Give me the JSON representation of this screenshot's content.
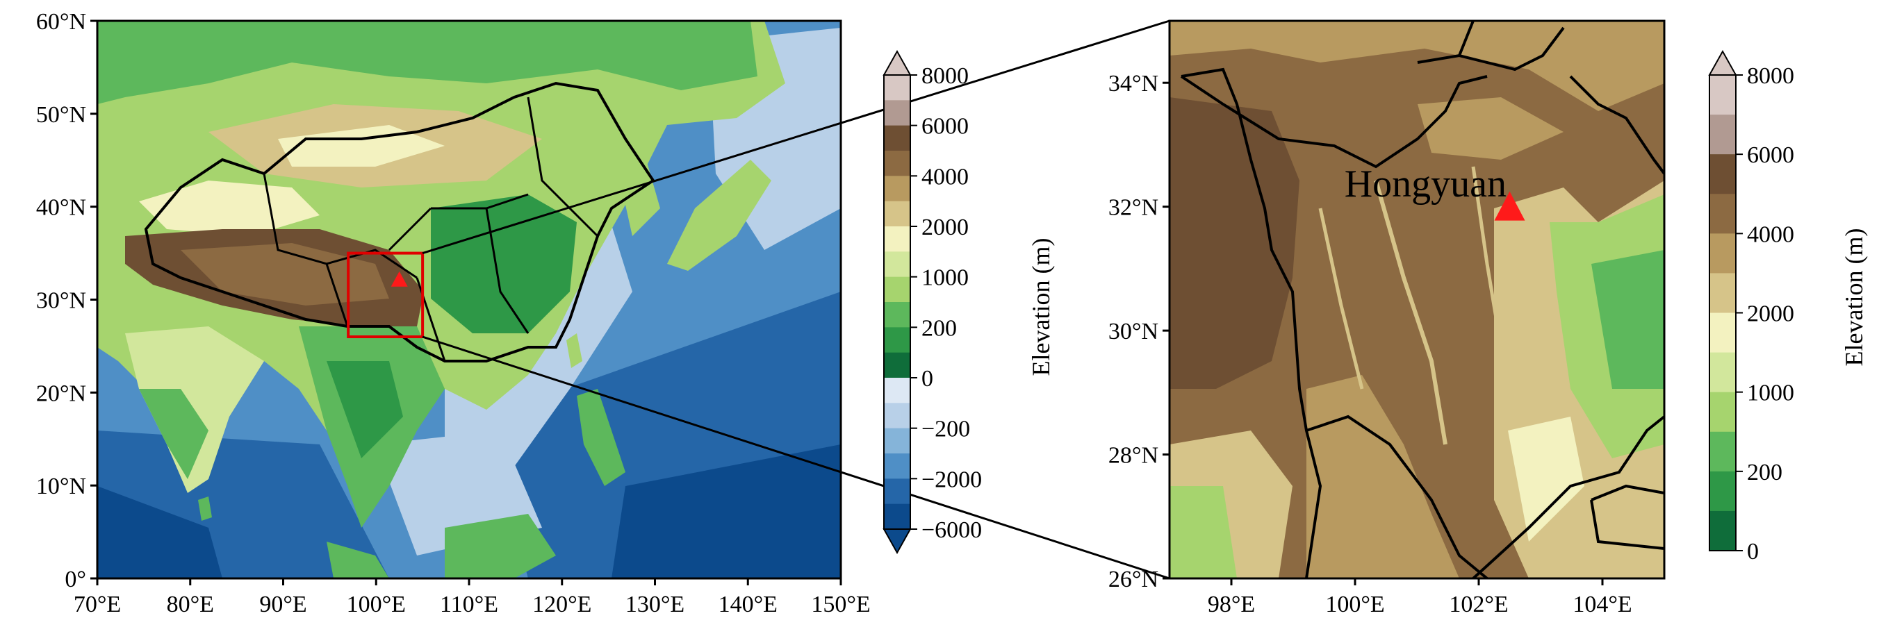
{
  "left_map": {
    "lat_ticks": [
      "60°N",
      "50°N",
      "40°N",
      "30°N",
      "20°N",
      "10°N",
      "0°"
    ],
    "lon_ticks": [
      "70°E",
      "80°E",
      "90°E",
      "100°E",
      "110°E",
      "120°E",
      "130°E",
      "140°E",
      "150°E"
    ],
    "extent": {
      "lon": [
        70,
        150
      ],
      "lat": [
        0,
        60
      ]
    },
    "inset_box": {
      "lon": [
        97,
        105
      ],
      "lat": [
        26,
        35
      ]
    },
    "site_marker": {
      "lon": 102.5,
      "lat": 32.0
    }
  },
  "left_colorbar": {
    "label": "Elevation (m)",
    "tick_labels": [
      "8000",
      "6000",
      "4000",
      "2000",
      "1000",
      "200",
      "0",
      "−200",
      "−2000",
      "−6000"
    ],
    "colors": [
      "#d8c8c4",
      "#b19a92",
      "#6e4f33",
      "#8c6a42",
      "#b89a60",
      "#d6c489",
      "#f3f2c0",
      "#d2e79c",
      "#a6d46e",
      "#5db85c",
      "#2e9847",
      "#0f6d3a",
      "#dde8f4",
      "#b8d0e8",
      "#85b4d9",
      "#4f8fc6",
      "#2566a8",
      "#0c4a8c"
    ]
  },
  "right_map": {
    "lat_ticks": [
      "34°N",
      "32°N",
      "30°N",
      "28°N",
      "26°N"
    ],
    "lon_ticks": [
      "98°E",
      "100°E",
      "102°E",
      "104°E"
    ],
    "extent": {
      "lon": [
        97,
        105
      ],
      "lat": [
        26,
        35
      ]
    },
    "site_label": "Hongyuan",
    "site_marker": {
      "lon": 102.5,
      "lat": 32.0
    }
  },
  "right_colorbar": {
    "label": "Elevation (m)",
    "tick_labels": [
      "8000",
      "6000",
      "4000",
      "2000",
      "1000",
      "200",
      "0"
    ],
    "colors": [
      "#d8c8c4",
      "#b19a92",
      "#6e4f33",
      "#8c6a42",
      "#b89a60",
      "#d6c489",
      "#f3f2c0",
      "#d2e79c",
      "#a6d46e",
      "#5db85c",
      "#2e9847",
      "#0f6d3a"
    ]
  }
}
